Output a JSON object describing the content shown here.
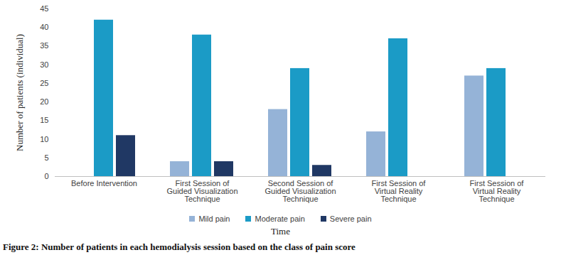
{
  "chart_data": {
    "type": "bar",
    "title": "Figure 2: Number of patients in each hemodialysis session based on the class of pain score",
    "x_label": "Time",
    "y_label": "Number of patients (individual)",
    "categories": [
      "Before Intervention",
      "First Session of Guided Visualization Technique",
      "Second Session of Guided Visualization Technique",
      "First Session of Virtual Reality Technique",
      "First Session of Virtual Reality Technique"
    ],
    "series": [
      {
        "name": "Mild pain",
        "color": "#95b3d7",
        "values": [
          0,
          4,
          18,
          12,
          27
        ]
      },
      {
        "name": "Moderate pain",
        "color": "#1b9bc6",
        "values": [
          42,
          38,
          29,
          37,
          29
        ]
      },
      {
        "name": "Severe pain",
        "color": "#203864",
        "values": [
          11,
          4,
          3,
          0,
          0
        ]
      }
    ],
    "ylim": [
      0,
      45
    ],
    "yticks": [
      0,
      5,
      10,
      15,
      20,
      25,
      30,
      35,
      40,
      45
    ],
    "grid": false,
    "legend": "bottom"
  }
}
